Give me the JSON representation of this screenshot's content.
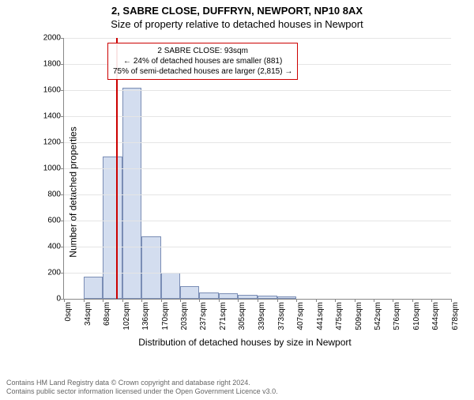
{
  "title_main": "2, SABRE CLOSE, DUFFRYN, NEWPORT, NP10 8AX",
  "title_sub": "Size of property relative to detached houses in Newport",
  "chart": {
    "type": "histogram",
    "ylabel": "Number of detached properties",
    "xlabel": "Distribution of detached houses by size in Newport",
    "ylim": [
      0,
      2000
    ],
    "ytick_step": 200,
    "bar_fill": "#d3ddef",
    "bar_border": "#7a8db5",
    "grid_color": "#e5e5e5",
    "axis_color": "#888888",
    "background": "#ffffff",
    "marker_color": "#cc0000",
    "marker_x": 93,
    "xticks": [
      0,
      34,
      68,
      102,
      136,
      170,
      203,
      237,
      271,
      305,
      339,
      373,
      407,
      441,
      475,
      509,
      542,
      576,
      610,
      644,
      678
    ],
    "xtick_unit": "sqm",
    "bars": [
      {
        "x0": 0,
        "x1": 34,
        "count": 0
      },
      {
        "x0": 34,
        "x1": 68,
        "count": 170
      },
      {
        "x0": 68,
        "x1": 102,
        "count": 1090
      },
      {
        "x0": 102,
        "x1": 136,
        "count": 1620
      },
      {
        "x0": 136,
        "x1": 170,
        "count": 480
      },
      {
        "x0": 170,
        "x1": 203,
        "count": 200
      },
      {
        "x0": 203,
        "x1": 237,
        "count": 100
      },
      {
        "x0": 237,
        "x1": 271,
        "count": 50
      },
      {
        "x0": 271,
        "x1": 305,
        "count": 40
      },
      {
        "x0": 305,
        "x1": 339,
        "count": 30
      },
      {
        "x0": 339,
        "x1": 373,
        "count": 25
      },
      {
        "x0": 373,
        "x1": 407,
        "count": 20
      },
      {
        "x0": 407,
        "x1": 441,
        "count": 0
      },
      {
        "x0": 441,
        "x1": 475,
        "count": 0
      },
      {
        "x0": 475,
        "x1": 509,
        "count": 0
      },
      {
        "x0": 509,
        "x1": 542,
        "count": 0
      },
      {
        "x0": 542,
        "x1": 576,
        "count": 0
      },
      {
        "x0": 576,
        "x1": 610,
        "count": 0
      },
      {
        "x0": 610,
        "x1": 644,
        "count": 0
      },
      {
        "x0": 644,
        "x1": 678,
        "count": 0
      }
    ],
    "annotation": {
      "line1": "2 SABRE CLOSE: 93sqm",
      "line2": "← 24% of detached houses are smaller (881)",
      "line3": "75% of semi-detached houses are larger (2,815) →"
    }
  },
  "footer": {
    "line1": "Contains HM Land Registry data © Crown copyright and database right 2024.",
    "line2": "Contains public sector information licensed under the Open Government Licence v3.0."
  }
}
